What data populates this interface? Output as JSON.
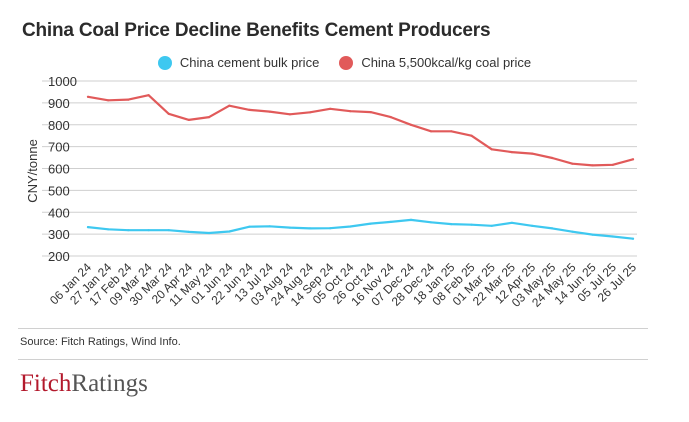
{
  "header": {
    "title": "China Coal Price Decline Benefits Cement Producers"
  },
  "footer": {
    "source": "Source: Fitch Ratings, Wind Info."
  },
  "logo": {
    "part1": "Fitch",
    "part2": "Ratings"
  },
  "colors": {
    "cement": "#3ec8f0",
    "coal": "#e15a5a",
    "grid": "#cfcfcf",
    "axis_text": "#333333"
  },
  "chart_data": {
    "type": "line",
    "title": "China Coal Price Decline Benefits Cement Producers",
    "xlabel": "",
    "ylabel": "CNY/tonne",
    "ylim": [
      200,
      1000
    ],
    "yticks": [
      1000,
      900,
      800,
      700,
      600,
      500,
      400,
      300,
      200
    ],
    "grid": true,
    "legend_position": "top-center",
    "categories": [
      "06 Jan 24",
      "27 Jan 24",
      "17 Feb 24",
      "09 Mar 24",
      "30 Mar 24",
      "20 Apr 24",
      "11 May 24",
      "01 Jun 24",
      "22 Jun 24",
      "13 Jul 24",
      "03 Aug 24",
      "24 Aug 24",
      "14 Sep 24",
      "05 Oct 24",
      "26 Oct 24",
      "16 Nov 24",
      "07 Dec 24",
      "28 Dec 24",
      "18 Jan 25",
      "08 Feb 25",
      "01 Mar 25",
      "22 Mar 25",
      "12 Apr 25",
      "03 May 25",
      "24 May 25",
      "14 Jun 25",
      "05 Jul 25",
      "26 Jul 25"
    ],
    "series": [
      {
        "name": "China cement bulk price",
        "color": "#3ec8f0",
        "values": [
          332,
          322,
          318,
          318,
          318,
          310,
          305,
          312,
          334,
          336,
          330,
          326,
          327,
          335,
          348,
          356,
          365,
          354,
          346,
          343,
          338,
          352,
          338,
          326,
          311,
          298,
          289,
          279
        ]
      },
      {
        "name": "China 5,500kcal/kg coal price",
        "color": "#e15a5a",
        "values": [
          928,
          912,
          915,
          935,
          850,
          822,
          835,
          887,
          868,
          860,
          848,
          857,
          873,
          862,
          858,
          835,
          800,
          770,
          770,
          750,
          688,
          675,
          668,
          648,
          622,
          614,
          617,
          642
        ]
      }
    ]
  }
}
